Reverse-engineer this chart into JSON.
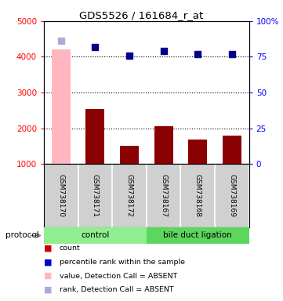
{
  "title": "GDS5526 / 161684_r_at",
  "samples": [
    "GSM738170",
    "GSM738171",
    "GSM738172",
    "GSM738167",
    "GSM738168",
    "GSM738169"
  ],
  "bar_values": [
    4200,
    2550,
    1500,
    2050,
    1680,
    1790
  ],
  "bar_absent": [
    true,
    false,
    false,
    false,
    false,
    false
  ],
  "rank_values": [
    86,
    82,
    76,
    79,
    77,
    77
  ],
  "rank_absent": [
    true,
    false,
    false,
    false,
    false,
    false
  ],
  "ylim_left": [
    1000,
    5000
  ],
  "ylim_right": [
    0,
    100
  ],
  "yticks_left": [
    1000,
    2000,
    3000,
    4000,
    5000
  ],
  "yticks_right": [
    0,
    25,
    50,
    75,
    100
  ],
  "bar_color_normal": "#8B0000",
  "bar_color_absent": "#FFB6C1",
  "rank_color_normal": "#00008B",
  "rank_color_absent": "#AAAADD",
  "group_colors": {
    "control": "#90EE90",
    "bile duct ligation": "#5CD65C"
  },
  "bg_color": "#FFFFFF",
  "legend_colors": [
    "#CC0000",
    "#0000CC",
    "#FFB6C1",
    "#AAAADD"
  ],
  "legend_labels": [
    "count",
    "percentile rank within the sample",
    "value, Detection Call = ABSENT",
    "rank, Detection Call = ABSENT"
  ]
}
